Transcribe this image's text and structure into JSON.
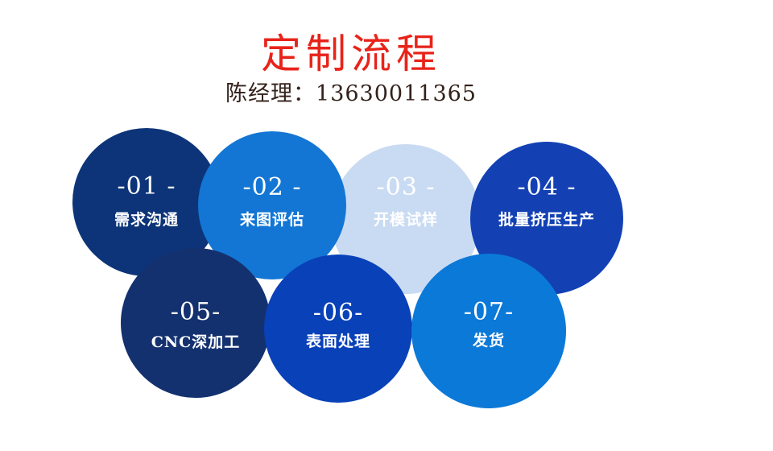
{
  "title": {
    "text": "定制流程",
    "color": "#e8231a"
  },
  "subtitle": {
    "text": "陈经理：13630011365",
    "color": "#33211a"
  },
  "background_color": "#ffffff",
  "process": {
    "steps": [
      {
        "number": "-01 -",
        "label": "需求沟通",
        "color": "#0d3478",
        "text_color": "#ffffff"
      },
      {
        "number": "-02 -",
        "label": "来图评估",
        "color": "#1376d4",
        "text_color": "#ffffff"
      },
      {
        "number": "-03 -",
        "label": "开模试样",
        "color": "#c9dbf3",
        "text_color": "#ffffff"
      },
      {
        "number": "-04 -",
        "label": "批量挤压生产",
        "color": "#1341b4",
        "text_color": "#ffffff"
      },
      {
        "number": "-05-",
        "label": "CNC深加工",
        "color": "#14316f",
        "text_color": "#ffffff"
      },
      {
        "number": "-06-",
        "label": "表面处理",
        "color": "#0941b8",
        "text_color": "#ffffff"
      },
      {
        "number": "-07-",
        "label": "发货",
        "color": "#0b79d8",
        "text_color": "#ffffff"
      }
    ]
  }
}
